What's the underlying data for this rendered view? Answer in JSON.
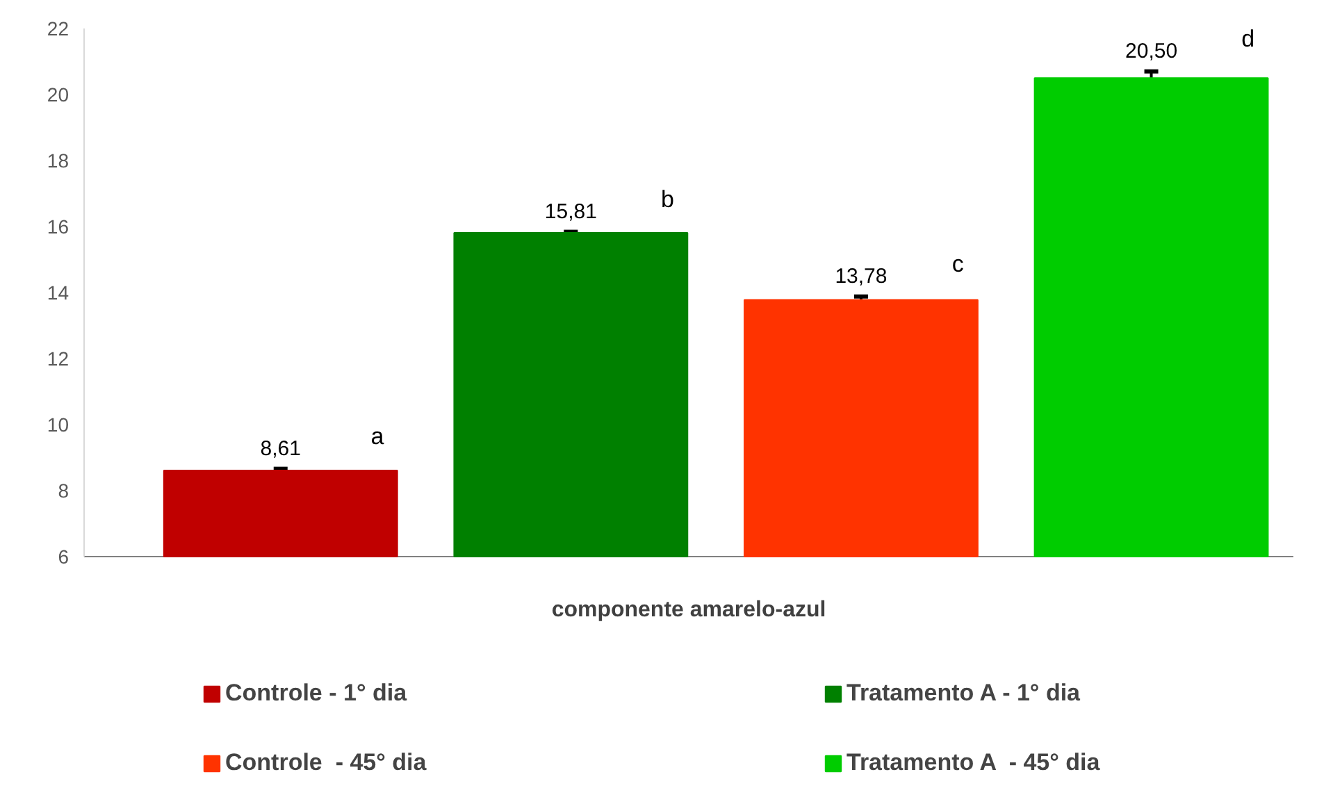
{
  "chart_data": {
    "type": "bar",
    "xlabel": null,
    "categories": [
      "componente amarelo-azul"
    ],
    "series": [
      {
        "name": "Controle - 1° dia",
        "color": "#c00000",
        "values": [
          8.61
        ],
        "errors": [
          0.05
        ],
        "value_labels": [
          "8,61"
        ]
      },
      {
        "name": "Tratamento A - 1° dia",
        "color": "#008000",
        "values": [
          15.81
        ],
        "errors": [
          0.03
        ],
        "value_labels": [
          "15,81"
        ]
      },
      {
        "name": "Controle  - 45° dia",
        "color": "#ff3300",
        "values": [
          13.78
        ],
        "errors": [
          0.1
        ],
        "value_labels": [
          "13,78"
        ]
      },
      {
        "name": "Tratamento A  - 45° dia",
        "color": "#00cc00",
        "values": [
          20.5
        ],
        "errors": [
          0.2
        ],
        "value_labels": [
          "20,50"
        ]
      }
    ],
    "annotations": [
      "a",
      "b",
      "c",
      "d"
    ],
    "ylim": [
      6,
      22
    ],
    "yticks": [
      6,
      8,
      10,
      12,
      14,
      16,
      18,
      20,
      22
    ],
    "grid": false,
    "legend": "bottom"
  }
}
